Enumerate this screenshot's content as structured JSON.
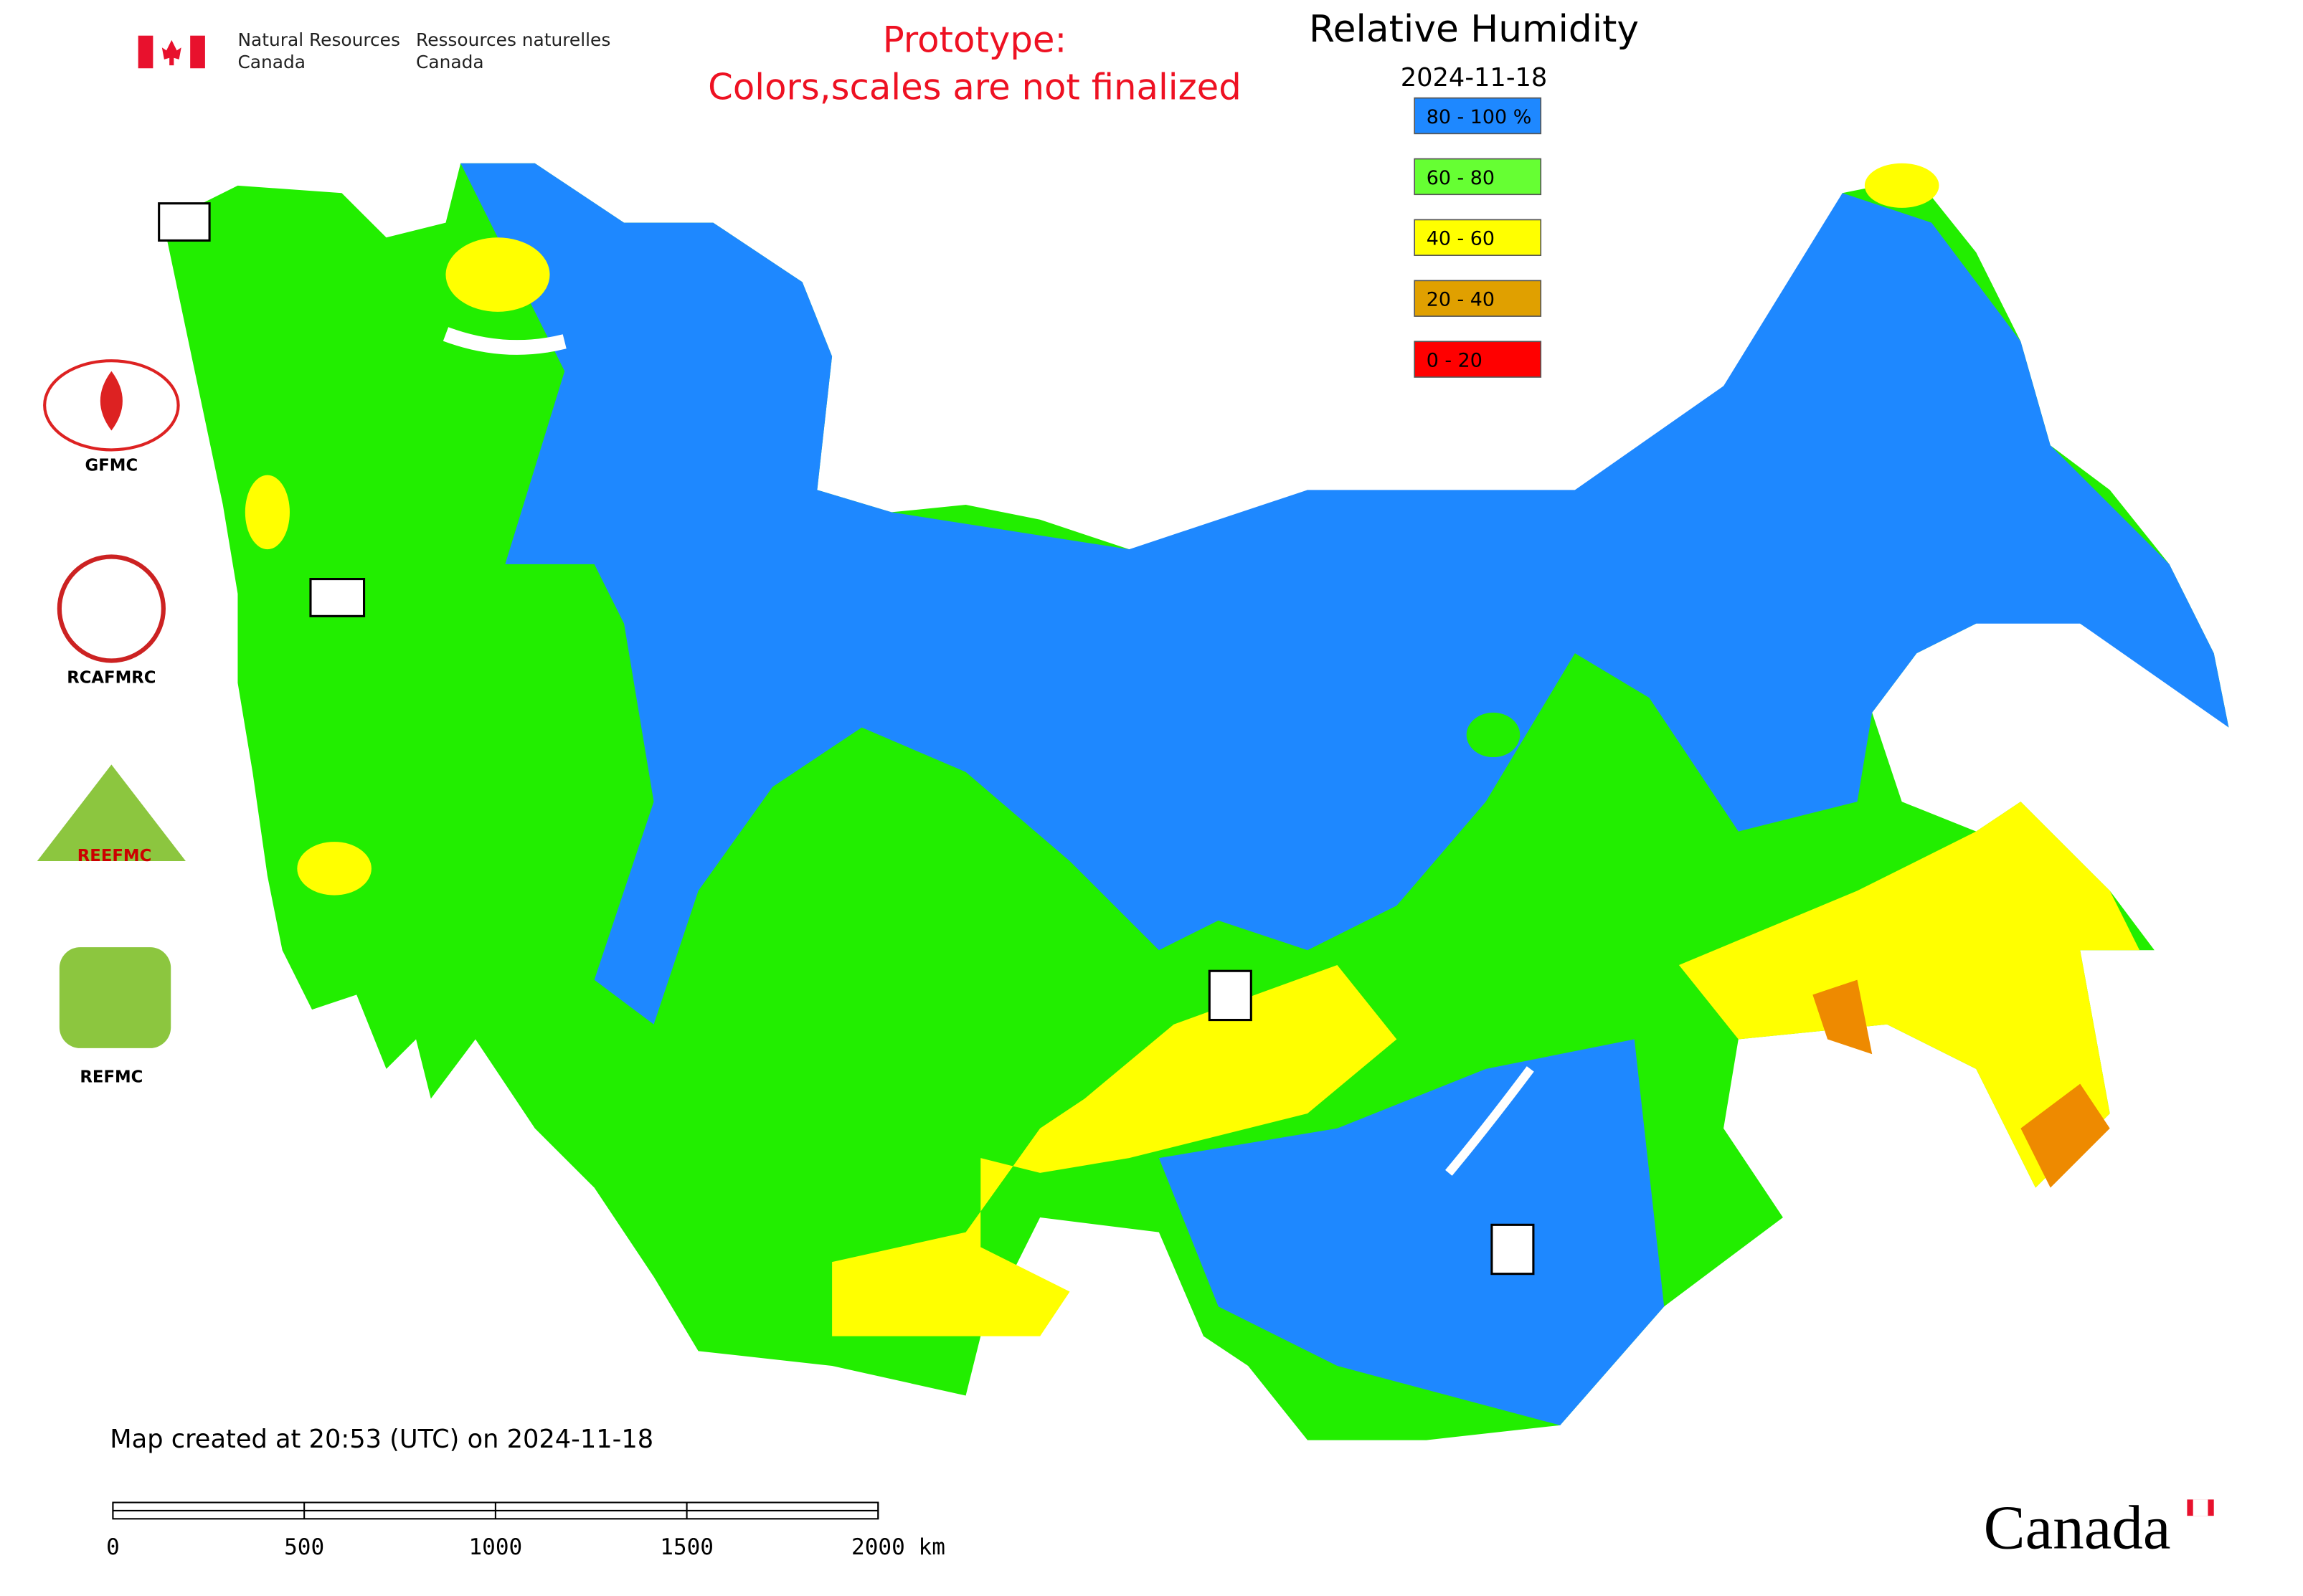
{
  "header": {
    "agency_en": [
      "Natural Resources",
      "Canada"
    ],
    "agency_fr": [
      "Ressources naturelles",
      "Canada"
    ]
  },
  "notice": [
    "Prototype:",
    "Colors,scales are not finalized"
  ],
  "title": "Relative Humidity",
  "date": "2024-11-18",
  "legend": [
    {
      "label": "80 - 100 %",
      "color": "#1e88ff"
    },
    {
      "label": "60 - 80",
      "color": "#66ff33"
    },
    {
      "label": "40 - 60",
      "color": "#ffff00"
    },
    {
      "label": "20 - 40",
      "color": "#e0a000"
    },
    {
      "label": "0 - 20",
      "color": "#ff0000"
    }
  ],
  "logos": [
    "GFMC",
    "RCAFMRC",
    "REEFMC",
    "REFMC"
  ],
  "footer": "Map created at 20:53 (UTC) on 2024-11-18",
  "scale_bar": {
    "ticks": [
      0,
      500,
      1000,
      1500,
      {
        "value": 2000,
        "label": "2000 km"
      }
    ]
  },
  "wordmark": "Canada"
}
